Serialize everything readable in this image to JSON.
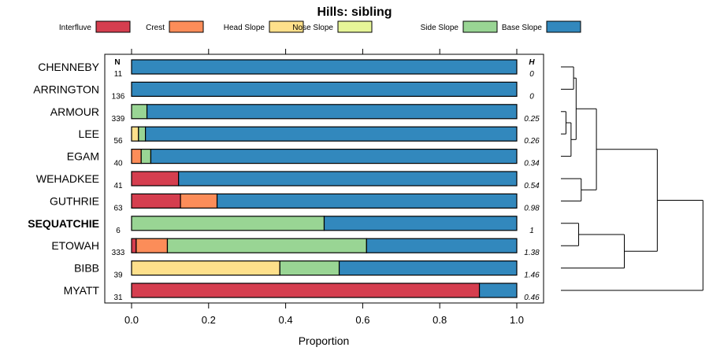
{
  "chart_data": {
    "type": "bar",
    "orientation": "horizontal",
    "stacked": true,
    "title": "Hills: sibling",
    "xlabel": "Proportion",
    "ylabel": "",
    "xlim": [
      0,
      1
    ],
    "xticks": [
      0.0,
      0.2,
      0.4,
      0.6,
      0.8,
      1.0
    ],
    "xtick_labels": [
      "0.0",
      "0.2",
      "0.4",
      "0.6",
      "0.8",
      "1.0"
    ],
    "n_header": "N",
    "h_header": "H",
    "legend": [
      {
        "name": "Interfluve",
        "color": "#d53e4f"
      },
      {
        "name": "Crest",
        "color": "#fc8d59"
      },
      {
        "name": "Head Slope",
        "color": "#fee08b"
      },
      {
        "name": "Nose Slope",
        "color": "#e6f598"
      },
      {
        "name": "Side Slope",
        "color": "#99d594"
      },
      {
        "name": "Base Slope",
        "color": "#3288bd"
      }
    ],
    "rows": [
      {
        "name": "CHENNEBY",
        "n": "11",
        "h": "0",
        "bold": false,
        "values": [
          0,
          0,
          0,
          0,
          0,
          1.0
        ]
      },
      {
        "name": "ARRINGTON",
        "n": "136",
        "h": "0",
        "bold": false,
        "values": [
          0,
          0,
          0,
          0,
          0,
          1.0
        ]
      },
      {
        "name": "ARMOUR",
        "n": "339",
        "h": "0.25",
        "bold": false,
        "values": [
          0,
          0,
          0,
          0,
          0.04,
          0.96
        ]
      },
      {
        "name": "LEE",
        "n": "56",
        "h": "0.26",
        "bold": false,
        "values": [
          0,
          0,
          0.018,
          0,
          0.018,
          0.964
        ]
      },
      {
        "name": "EGAM",
        "n": "40",
        "h": "0.34",
        "bold": false,
        "values": [
          0,
          0.025,
          0,
          0,
          0.025,
          0.95
        ]
      },
      {
        "name": "WEHADKEE",
        "n": "41",
        "h": "0.54",
        "bold": false,
        "values": [
          0.122,
          0,
          0,
          0,
          0,
          0.878
        ]
      },
      {
        "name": "GUTHRIE",
        "n": "63",
        "h": "0.98",
        "bold": false,
        "values": [
          0.127,
          0.095,
          0,
          0,
          0,
          0.778
        ]
      },
      {
        "name": "SEQUATCHIE",
        "n": "6",
        "h": "1",
        "bold": true,
        "values": [
          0,
          0,
          0,
          0,
          0.5,
          0.5
        ]
      },
      {
        "name": "ETOWAH",
        "n": "333",
        "h": "1.38",
        "bold": false,
        "values": [
          0.012,
          0.081,
          0,
          0,
          0.517,
          0.39
        ]
      },
      {
        "name": "BIBB",
        "n": "39",
        "h": "1.46",
        "bold": false,
        "values": [
          0,
          0,
          0.385,
          0,
          0.154,
          0.461
        ]
      },
      {
        "name": "MYATT",
        "n": "31",
        "h": "0.46",
        "bold": false,
        "values": [
          0.903,
          0,
          0,
          0,
          0,
          0.097
        ]
      }
    ],
    "dendrogram": {
      "description": "hierarchical clustering of row profiles",
      "merges": [
        {
          "id": "m1",
          "a": "CHENNEBY",
          "b": "ARRINGTON",
          "height": 0.05
        },
        {
          "id": "m2",
          "a": "ARMOUR",
          "b": "LEE",
          "height": 0.02
        },
        {
          "id": "m3",
          "a": "m2",
          "b": "EGAM",
          "height": 0.04
        },
        {
          "id": "m4",
          "a": "m1",
          "b": "m3",
          "height": 0.06
        },
        {
          "id": "m5",
          "a": "WEHADKEE",
          "b": "GUTHRIE",
          "height": 0.08
        },
        {
          "id": "m6",
          "a": "m4",
          "b": "m5",
          "height": 0.14
        },
        {
          "id": "m7",
          "a": "SEQUATCHIE",
          "b": "ETOWAH",
          "height": 0.07
        },
        {
          "id": "m8",
          "a": "m7",
          "b": "BIBB",
          "height": 0.25
        },
        {
          "id": "m9",
          "a": "m6",
          "b": "m8",
          "height": 0.38
        },
        {
          "id": "m10",
          "a": "m9",
          "b": "MYATT",
          "height": 0.56
        }
      ]
    }
  }
}
